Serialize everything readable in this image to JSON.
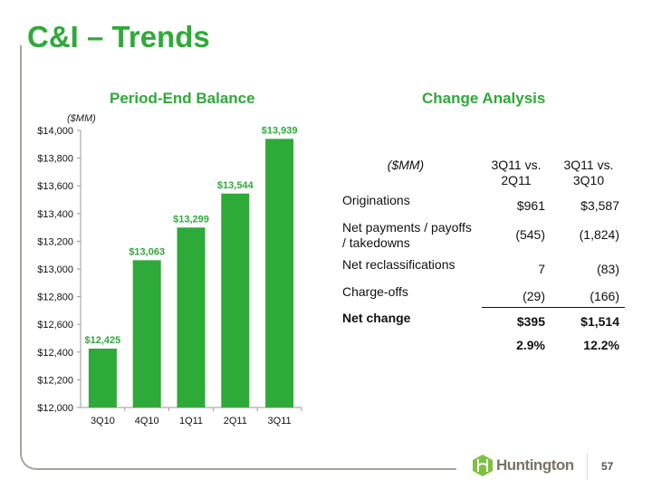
{
  "title": "C&I – Trends",
  "chart_data": {
    "type": "bar",
    "title": "Period-End Balance",
    "ylabel": "($MM)",
    "xlabel": "",
    "categories": [
      "3Q10",
      "4Q10",
      "1Q11",
      "2Q11",
      "3Q11"
    ],
    "values": [
      12425,
      13063,
      13299,
      13544,
      13939
    ],
    "data_labels": [
      "$12,425",
      "$13,063",
      "$13,299",
      "$13,544",
      "$13,939"
    ],
    "ylim": [
      12000,
      14000
    ],
    "yticks": [
      12000,
      12200,
      12400,
      12600,
      12800,
      13000,
      13200,
      13400,
      13600,
      13800,
      14000
    ],
    "ytick_labels": [
      "$12,000",
      "$12,200",
      "$12,400",
      "$12,600",
      "$12,800",
      "$13,000",
      "$13,200",
      "$13,400",
      "$13,600",
      "$13,800",
      "$14,000"
    ],
    "bar_color": "#2eaa38",
    "grid": false
  },
  "change": {
    "title": "Change Analysis",
    "unit": "($MM)",
    "col1": [
      "3Q11 vs.",
      "2Q11"
    ],
    "col2": [
      "3Q11 vs.",
      "3Q10"
    ],
    "rows": [
      {
        "label": [
          "Originations"
        ],
        "v1": "$961",
        "v2": "$3,587"
      },
      {
        "label": [
          "Net payments / payoffs",
          "/ takedowns"
        ],
        "v1": "(545)",
        "v2": "(1,824)"
      },
      {
        "label": [
          "Net reclassifications"
        ],
        "v1": "7",
        "v2": "(83)"
      },
      {
        "label": [
          "Charge-offs"
        ],
        "v1": "(29)",
        "v2": "(166)"
      }
    ],
    "total": {
      "label": "Net change",
      "v1": "$395",
      "v2": "$1,514"
    },
    "pct": {
      "v1": "2.9%",
      "v2": "12.2%"
    }
  },
  "footer": {
    "brand": "Huntington",
    "page": "57"
  }
}
